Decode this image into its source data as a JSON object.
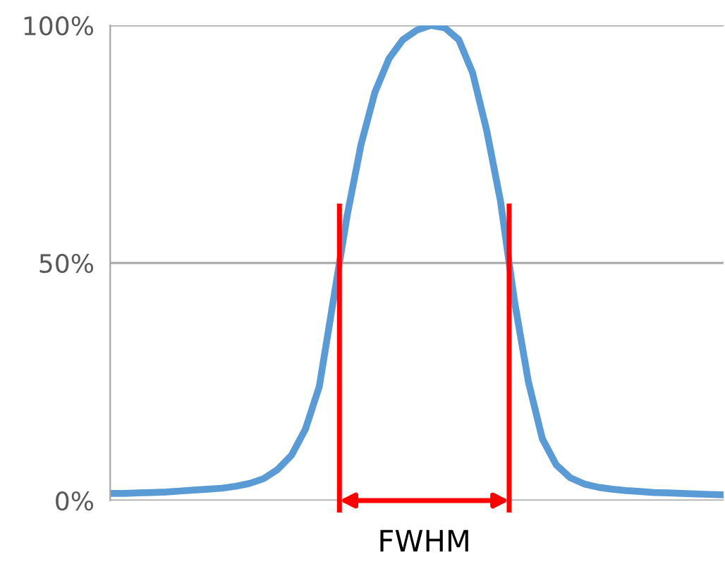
{
  "chart_data": {
    "type": "line",
    "categories": [
      null,
      null,
      null,
      null,
      null,
      null,
      null,
      null,
      null,
      null,
      null,
      null,
      null,
      null,
      null,
      null,
      null,
      null,
      null,
      null,
      null,
      null,
      null,
      null,
      null,
      null,
      null,
      null,
      null,
      null,
      null,
      null,
      null,
      null,
      null,
      null,
      null,
      null,
      null,
      null,
      null,
      null,
      null,
      null,
      null
    ],
    "series": [
      {
        "color": "#5b9bd5",
        "values": [
          1.5,
          1.5,
          1.6,
          1.7,
          1.8,
          2.0,
          2.2,
          2.4,
          2.6,
          3.0,
          3.6,
          4.6,
          6.5,
          9.5,
          15,
          24,
          42,
          60,
          75,
          86,
          93,
          97,
          99,
          100,
          99.5,
          97,
          90,
          78,
          63,
          42,
          25,
          13,
          7.5,
          4.8,
          3.5,
          2.8,
          2.4,
          2.1,
          1.9,
          1.7,
          1.6,
          1.5,
          1.4,
          1.3,
          1.2
        ]
      }
    ],
    "ylim": [
      0,
      100
    ],
    "yticks": [
      {
        "value": 0,
        "label": "0%"
      },
      {
        "value": 50,
        "label": "50%"
      },
      {
        "value": 100,
        "label": "100%"
      }
    ],
    "grid": "y",
    "marker": "none",
    "line_style": "solid",
    "legend": false,
    "tick_labels": "y",
    "annotations": [
      "FWHM"
    ]
  }
}
